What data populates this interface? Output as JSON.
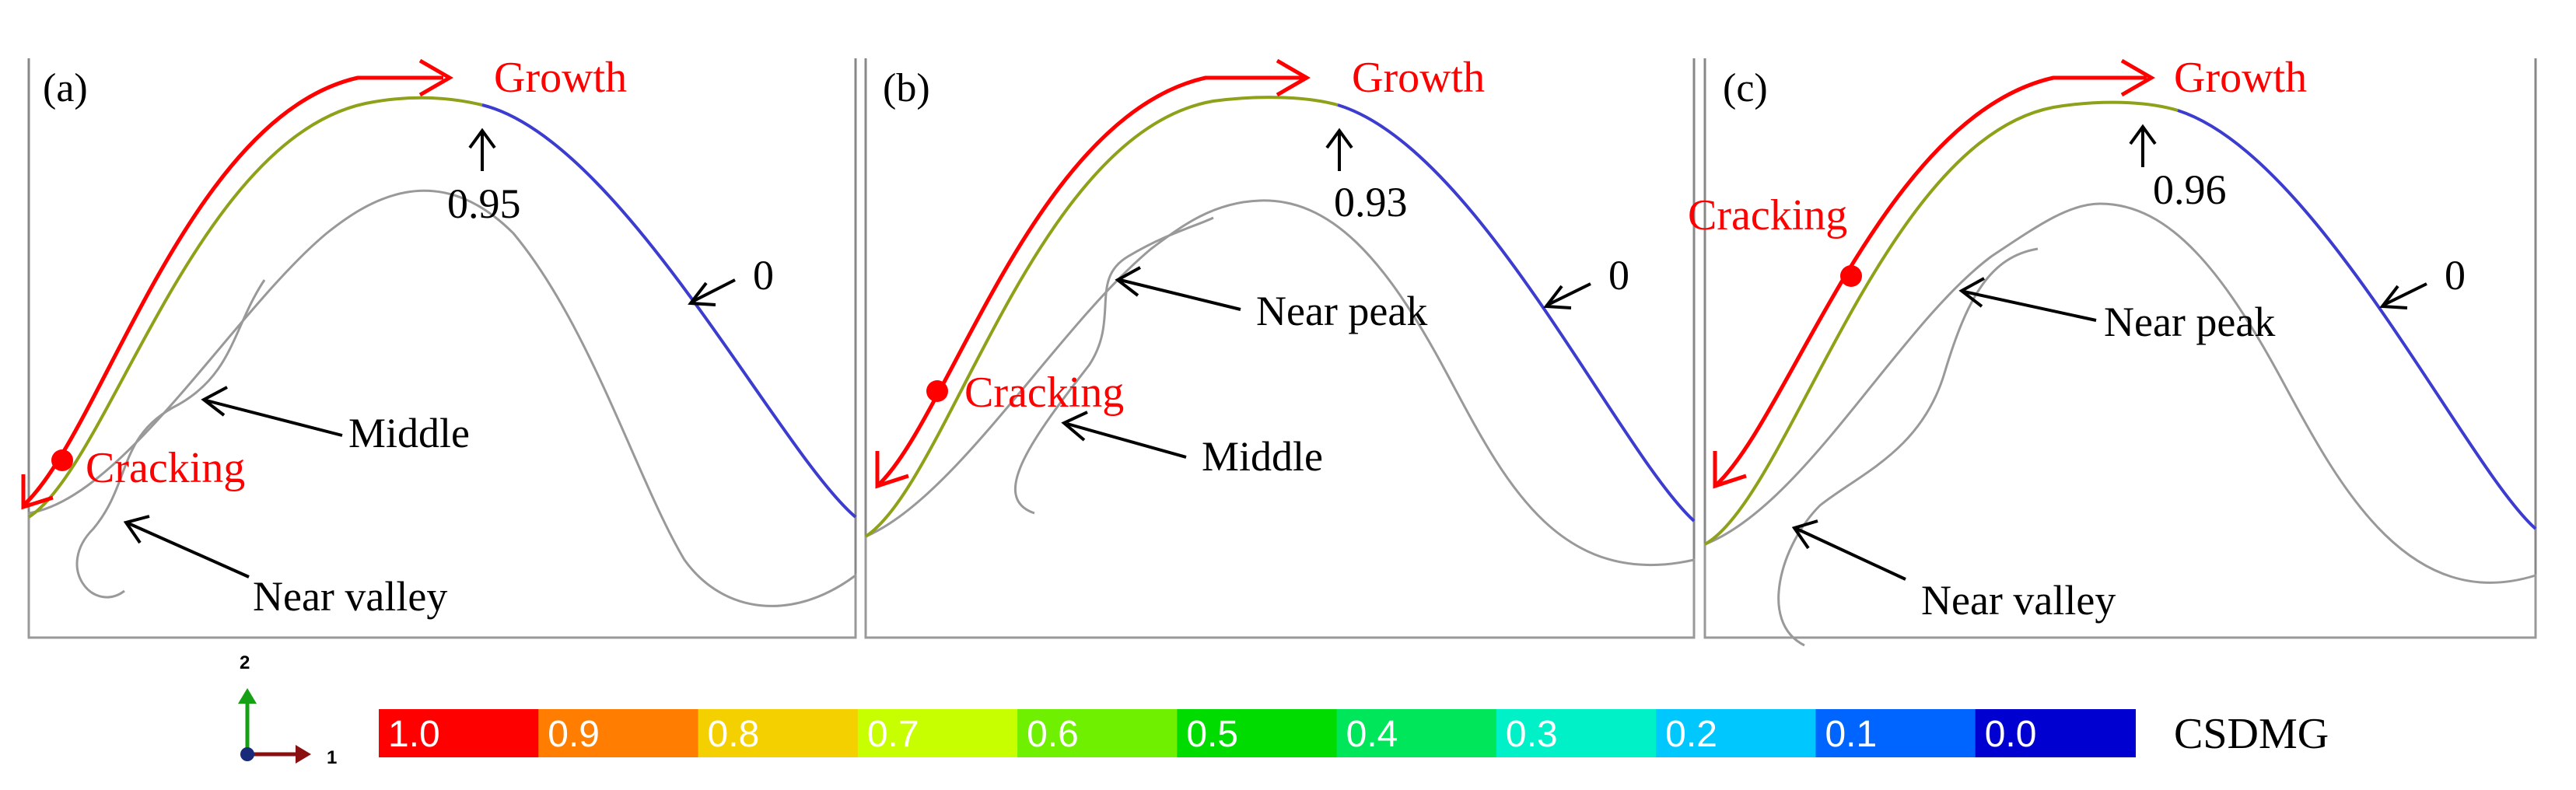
{
  "panels": [
    {
      "label": "(a)",
      "growth_label": "Growth",
      "cracking_label": "Cracking",
      "peak_value": "0.95",
      "end_value": "0",
      "annotations": [
        "Middle",
        "Near valley"
      ]
    },
    {
      "label": "(b)",
      "growth_label": "Growth",
      "cracking_label": "Cracking",
      "peak_value": "0.93",
      "end_value": "0",
      "annotations": [
        "Near peak",
        "Middle"
      ]
    },
    {
      "label": "(c)",
      "growth_label": "Growth",
      "cracking_label": "Cracking",
      "peak_value": "0.96",
      "end_value": "0",
      "annotations": [
        "Near peak",
        "Near valley"
      ]
    }
  ],
  "axis_triad": {
    "vertical": "2",
    "horizontal": "1"
  },
  "colorbar": {
    "title": "CSDMG",
    "ticks": [
      "1.0",
      "0.9",
      "0.8",
      "0.7",
      "0.6",
      "0.5",
      "0.4",
      "0.3",
      "0.2",
      "0.1",
      "0.0"
    ],
    "colors": [
      "#ff0000",
      "#ff7d00",
      "#f5d000",
      "#c8ff00",
      "#6ef000",
      "#00dc00",
      "#00e65a",
      "#00f0c8",
      "#00c8ff",
      "#0064ff",
      "#0000d0"
    ]
  },
  "colors": {
    "crack_path": "#ff0000",
    "damaged_surface": "#8fa019",
    "intact_surface": "#3c3ccf",
    "outline": "#999999",
    "annotation": "#000000"
  }
}
